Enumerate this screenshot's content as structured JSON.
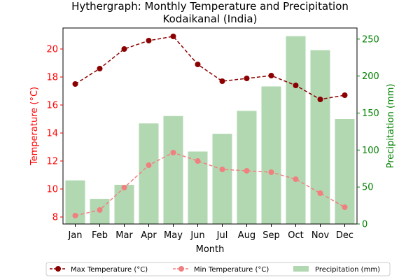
{
  "chart_data": {
    "type": "bar+line",
    "title_line1": "Hythergraph: Monthly Temperature and Precipitation",
    "title_line2": "Kodaikanal (India)",
    "xlabel": "Month",
    "ylabel_left": "Temperature (°C)",
    "ylabel_right": "Precipitation (mm)",
    "categories": [
      "Jan",
      "Feb",
      "Mar",
      "Apr",
      "May",
      "Jun",
      "Jul",
      "Aug",
      "Sep",
      "Oct",
      "Nov",
      "Dec"
    ],
    "ylim_left": [
      7.5,
      21.5
    ],
    "yticks_left": [
      8,
      10,
      12,
      14,
      16,
      18,
      20
    ],
    "ylim_right": [
      0,
      265
    ],
    "yticks_right": [
      0,
      50,
      100,
      150,
      200,
      250
    ],
    "legend_position": "bottom",
    "colors": {
      "left_axis": "#ff0000",
      "right_axis": "#008000",
      "max_line": "#8b0000",
      "min_line": "#f08080",
      "bars": "#b2d8b2"
    },
    "series": [
      {
        "name": "Max Temperature (°C)",
        "kind": "line",
        "axis": "left",
        "values": [
          17.5,
          18.6,
          20.0,
          20.6,
          20.9,
          18.9,
          17.7,
          17.9,
          18.1,
          17.4,
          16.4,
          16.7
        ]
      },
      {
        "name": "Min Temperature (°C)",
        "kind": "line",
        "axis": "left",
        "values": [
          8.1,
          8.5,
          10.1,
          11.7,
          12.6,
          12.0,
          11.4,
          11.3,
          11.2,
          10.7,
          9.7,
          8.7
        ]
      },
      {
        "name": "Precipitation (mm)",
        "kind": "bar",
        "axis": "right",
        "values": [
          59,
          34,
          53,
          136,
          146,
          98,
          122,
          153,
          186,
          254,
          235,
          142
        ]
      }
    ]
  }
}
